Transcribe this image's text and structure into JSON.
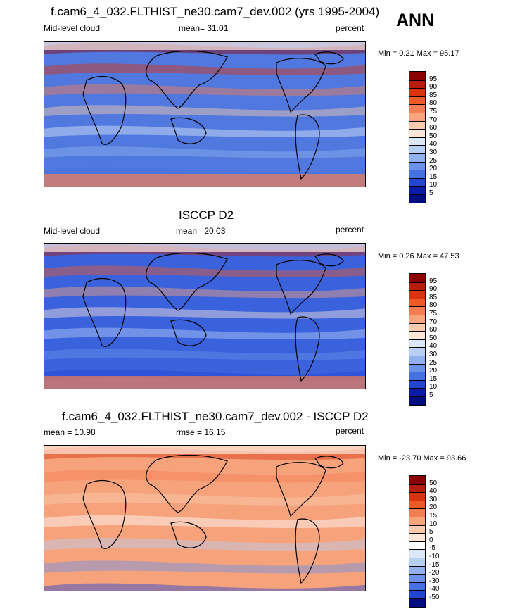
{
  "season": "ANN",
  "panels": [
    {
      "title": "f.cam6_4_032.FLTHIST_ne30.cam7_dev.002 (yrs 1995-2004)",
      "left": "Mid-level cloud",
      "middle": "mean=  31.01",
      "right": "percent",
      "minmax": "Min =   0.21 Max =   95.17",
      "levels": [
        "95",
        "90",
        "85",
        "80",
        "75",
        "70",
        "60",
        "50",
        "40",
        "30",
        "25",
        "20",
        "15",
        "10",
        "5"
      ],
      "colors": [
        "#8b0000",
        "#b81c0c",
        "#d8340f",
        "#ec5a2a",
        "#f47e53",
        "#f8a57d",
        "#fbcbad",
        "#fde7d9",
        "#dbe8f8",
        "#b6cff3",
        "#8fb2ee",
        "#6a93e8",
        "#4571e2",
        "#2245d2",
        "#0a1ba8",
        "#000c80"
      ],
      "bg": "#5078df"
    },
    {
      "title": "ISCCP D2",
      "left": "Mid-level cloud",
      "middle": "mean=  20.03",
      "right": "percent",
      "minmax": "Min =   0.26 Max =   47.53",
      "levels": [
        "95",
        "90",
        "85",
        "80",
        "75",
        "70",
        "60",
        "50",
        "40",
        "30",
        "25",
        "20",
        "15",
        "10",
        "5"
      ],
      "colors": [
        "#8b0000",
        "#b81c0c",
        "#d8340f",
        "#ec5a2a",
        "#f47e53",
        "#f8a57d",
        "#fbcbad",
        "#fde7d9",
        "#dbe8f8",
        "#b6cff3",
        "#8fb2ee",
        "#6a93e8",
        "#4571e2",
        "#2245d2",
        "#0a1ba8",
        "#000c80"
      ],
      "bg": "#3a62dc"
    },
    {
      "title": "f.cam6_4_032.FLTHIST_ne30.cam7_dev.002 - ISCCP D2",
      "left": "mean =  10.98",
      "middle": "rmse =  16.15",
      "right": "percent",
      "minmax": "Min = -23.70 Max =   93.66",
      "levels": [
        "50",
        "40",
        "30",
        "20",
        "15",
        "10",
        "5",
        "0",
        "-5",
        "-10",
        "-15",
        "-20",
        "-30",
        "-40",
        "-50"
      ],
      "colors": [
        "#8b0000",
        "#b81c0c",
        "#d8340f",
        "#ec5a2a",
        "#f47e53",
        "#f8a57d",
        "#fbcbad",
        "#fde7d9",
        "#ffffff",
        "#dbe8f8",
        "#b6cff3",
        "#8fb2ee",
        "#6a93e8",
        "#4571e2",
        "#2245d2",
        "#000c80"
      ],
      "bg": "#f6a37c"
    }
  ]
}
